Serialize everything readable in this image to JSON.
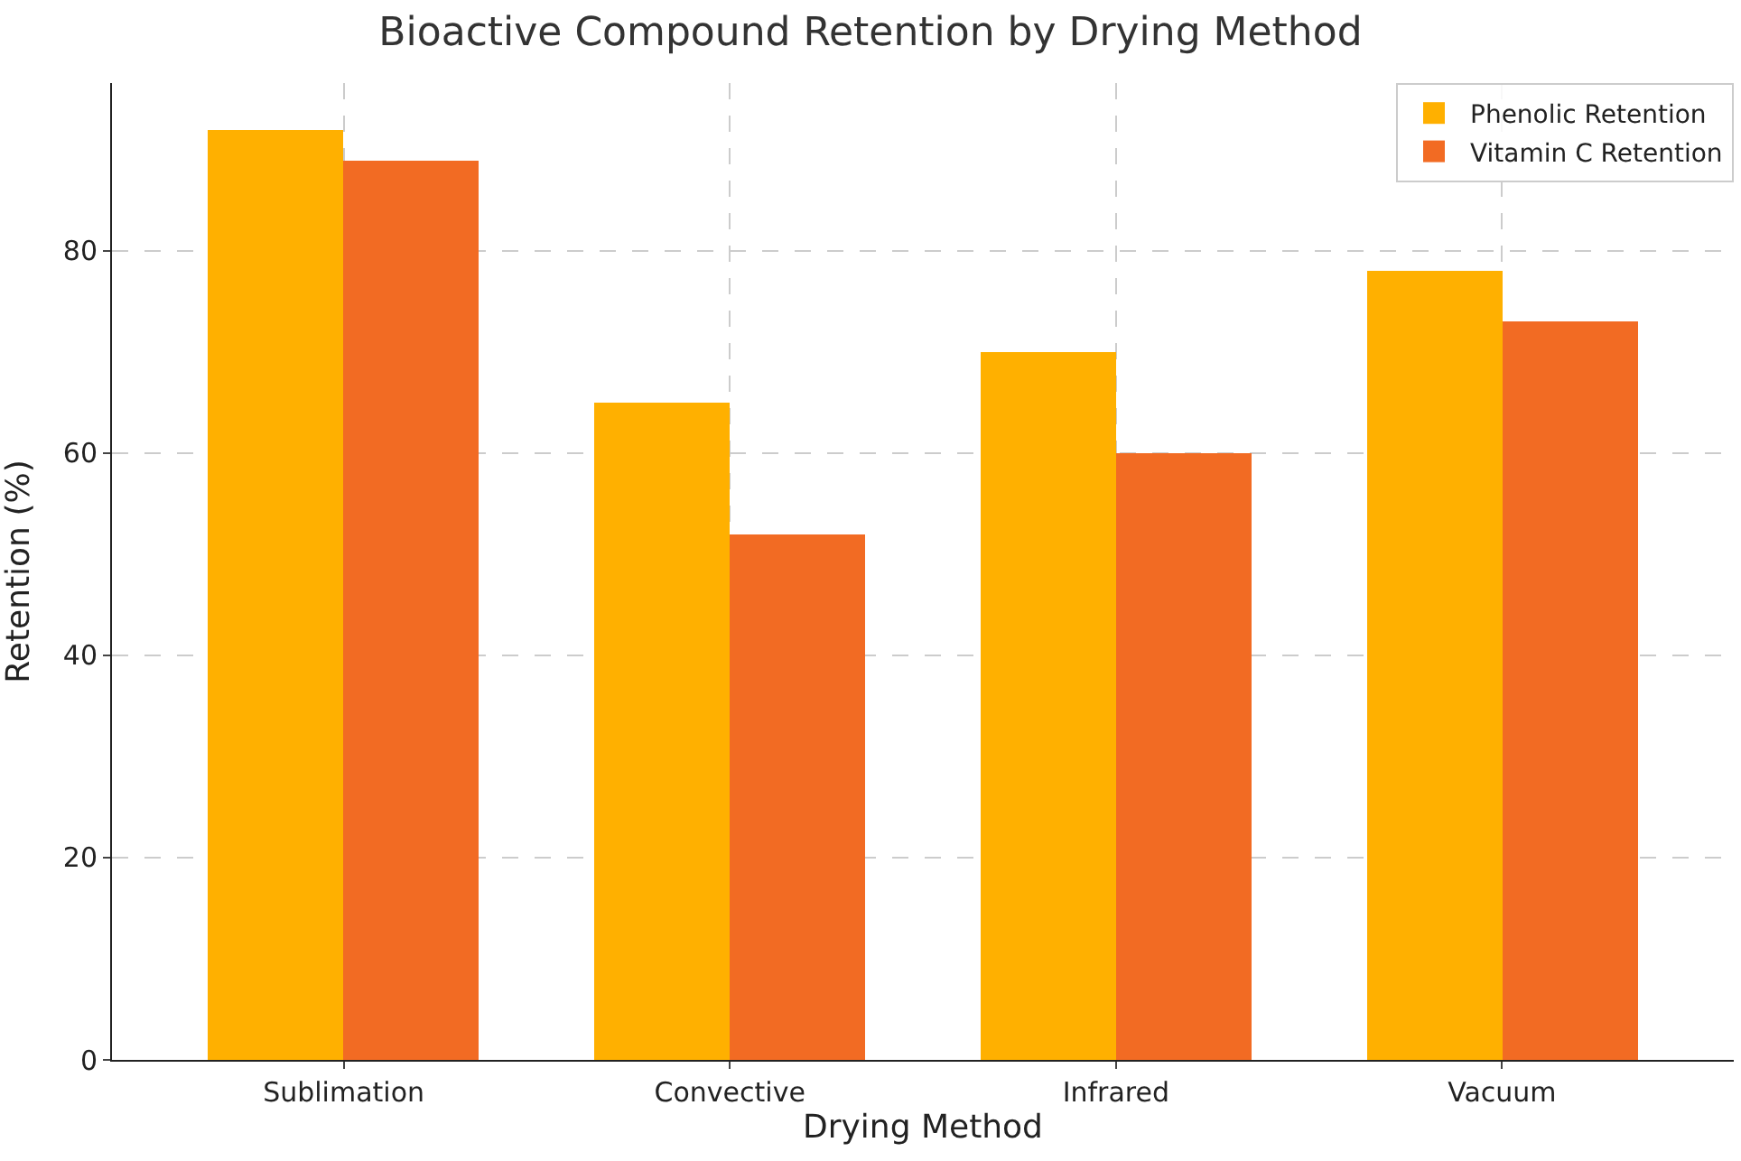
{
  "chart_data": {
    "type": "bar",
    "title": "Bioactive Compound Retention by Drying Method",
    "xlabel": "Drying Method",
    "ylabel": "Retention (%)",
    "categories": [
      "Sublimation",
      "Convective",
      "Infrared",
      "Vacuum"
    ],
    "series": [
      {
        "name": "Phenolic Retention",
        "color": "#ffb000",
        "values": [
          92,
          65,
          70,
          78
        ]
      },
      {
        "name": "Vitamin C Retention",
        "color": "#f26b23",
        "values": [
          89,
          52,
          60,
          73
        ]
      }
    ],
    "ylim": [
      0,
      96.6
    ],
    "yticks": [
      0,
      20,
      40,
      60,
      80
    ],
    "grid": true,
    "legend": "top right"
  }
}
